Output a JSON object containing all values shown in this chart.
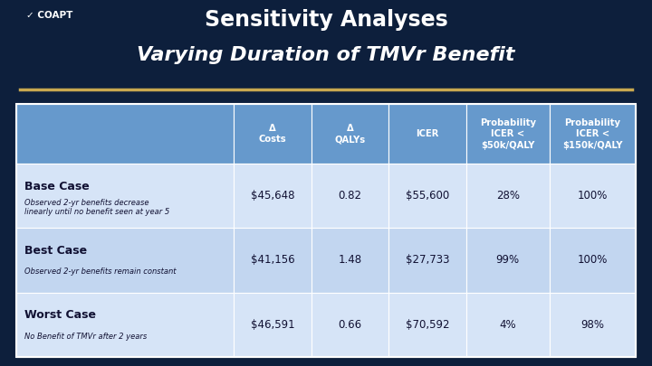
{
  "title_line1": "Sensitivity Analyses",
  "title_line2": "Varying Duration of TMVr Benefit",
  "bg_color": "#0d1f3c",
  "header_bg": "#6699cc",
  "row_bg_odd": "#d6e4f7",
  "row_bg_even": "#c2d6f0",
  "gold_line_color": "#c8a850",
  "col_headers": [
    "Δ\nCosts",
    "Δ\nQALYs",
    "ICER",
    "Probability\nICER <\n$50k/QALY",
    "Probability\nICER <\n$150k/QALY"
  ],
  "rows": [
    {
      "label_bold": "Base Case",
      "label_italic": "Observed 2-yr benefits decrease\nlinearly until no benefit seen at year 5",
      "values": [
        "$45,648",
        "0.82",
        "$55,600",
        "28%",
        "100%"
      ]
    },
    {
      "label_bold": "Best Case",
      "label_italic": "Observed 2-yr benefits remain constant",
      "values": [
        "$41,156",
        "1.48",
        "$27,733",
        "99%",
        "100%"
      ]
    },
    {
      "label_bold": "Worst Case",
      "label_italic": "No Benefit of TMVr after 2 years",
      "values": [
        "$46,591",
        "0.66",
        "$70,592",
        "4%",
        "98%"
      ]
    }
  ],
  "logo_text": "✓ COAPT"
}
